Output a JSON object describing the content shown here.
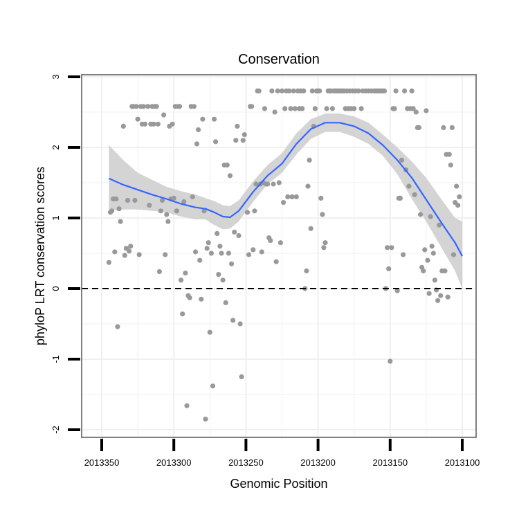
{
  "chart_data": {
    "type": "scatter",
    "title": "Conservation",
    "xlabel": "Genomic Position",
    "ylabel": "phyloP LRT conservation scores",
    "x_reversed": true,
    "xlim": [
      2013100,
      2013350
    ],
    "ylim": [
      -2,
      3
    ],
    "xticks": [
      2013350,
      2013300,
      2013250,
      2013200,
      2013150,
      2013100
    ],
    "xtick_labels": [
      "2013350",
      "2013300",
      "2013250",
      "2013200",
      "2013150",
      "2013100"
    ],
    "yticks": [
      -2,
      -1,
      0,
      1,
      2,
      3
    ],
    "ytick_labels": [
      "-2",
      "-1",
      "0",
      "1",
      "2",
      "3"
    ],
    "reference_line": {
      "y": 0,
      "style": "dashed"
    },
    "colors": {
      "points": "#999999",
      "smooth": "#3366ff",
      "ribbon": "#cccccc",
      "background": "#ffffff",
      "grid": "#f0f0f0",
      "border": "#7f7f7f"
    },
    "points": [
      [
        2013345,
        0.37
      ],
      [
        2013344,
        1.08
      ],
      [
        2013343,
        1.1
      ],
      [
        2013342,
        1.27
      ],
      [
        2013341,
        0.52
      ],
      [
        2013340,
        1.27
      ],
      [
        2013339,
        -0.54
      ],
      [
        2013338,
        1.13
      ],
      [
        2013337,
        0.95
      ],
      [
        2013335,
        2.3
      ],
      [
        2013334,
        0.47
      ],
      [
        2013333,
        0.57
      ],
      [
        2013332,
        1.25
      ],
      [
        2013331,
        0.53
      ],
      [
        2013330,
        0.6
      ],
      [
        2013329,
        2.58
      ],
      [
        2013328,
        2.58
      ],
      [
        2013327,
        1.25
      ],
      [
        2013326,
        2.58
      ],
      [
        2013325,
        2.4
      ],
      [
        2013324,
        0.48
      ],
      [
        2013323,
        2.58
      ],
      [
        2013322,
        2.33
      ],
      [
        2013321,
        2.58
      ],
      [
        2013320,
        2.33
      ],
      [
        2013318,
        2.58
      ],
      [
        2013317,
        1.18
      ],
      [
        2013316,
        2.33
      ],
      [
        2013315,
        2.58
      ],
      [
        2013314,
        2.33
      ],
      [
        2013313,
        2.58
      ],
      [
        2013312,
        2.58
      ],
      [
        2013311,
        2.33
      ],
      [
        2013310,
        0.24
      ],
      [
        2013309,
        1.1
      ],
      [
        2013308,
        1.25
      ],
      [
        2013307,
        2.46
      ],
      [
        2013306,
        0.48
      ],
      [
        2013305,
        1.05
      ],
      [
        2013304,
        0.95
      ],
      [
        2013303,
        2.3
      ],
      [
        2013302,
        1.27
      ],
      [
        2013301,
        2.33
      ],
      [
        2013300,
        1.28
      ],
      [
        2013299,
        2.58
      ],
      [
        2013298,
        1.1
      ],
      [
        2013297,
        2.58
      ],
      [
        2013296,
        2.58
      ],
      [
        2013295,
        0.12
      ],
      [
        2013294,
        -0.36
      ],
      [
        2013293,
        1.23
      ],
      [
        2013292,
        0.22
      ],
      [
        2013291,
        -1.66
      ],
      [
        2013290,
        -0.1
      ],
      [
        2013289,
        -0.13
      ],
      [
        2013288,
        2.58
      ],
      [
        2013287,
        1.3
      ],
      [
        2013286,
        2.58
      ],
      [
        2013285,
        0.52
      ],
      [
        2013284,
        2.05
      ],
      [
        2013283,
        2.25
      ],
      [
        2013282,
        0.4
      ],
      [
        2013281,
        -0.15
      ],
      [
        2013280,
        2.4
      ],
      [
        2013279,
        1.1
      ],
      [
        2013278,
        -1.85
      ],
      [
        2013277,
        0.57
      ],
      [
        2013276,
        0.65
      ],
      [
        2013275,
        -0.62
      ],
      [
        2013274,
        0.5
      ],
      [
        2013273,
        -1.38
      ],
      [
        2013272,
        2.4
      ],
      [
        2013271,
        2.08
      ],
      [
        2013270,
        0.78
      ],
      [
        2013269,
        0.2
      ],
      [
        2013268,
        0.6
      ],
      [
        2013267,
        0.5
      ],
      [
        2013266,
        0.12
      ],
      [
        2013265,
        1.75
      ],
      [
        2013264,
        -0.2
      ],
      [
        2013263,
        1.75
      ],
      [
        2013262,
        0.5
      ],
      [
        2013261,
        1.6
      ],
      [
        2013260,
        0.35
      ],
      [
        2013259,
        -0.45
      ],
      [
        2013258,
        0.8
      ],
      [
        2013257,
        2.1
      ],
      [
        2013256,
        2.3
      ],
      [
        2013255,
        0.75
      ],
      [
        2013254,
        -0.5
      ],
      [
        2013253,
        -1.25
      ],
      [
        2013252,
        2.1
      ],
      [
        2013251,
        2.18
      ],
      [
        2013249,
        1.08
      ],
      [
        2013248,
        0.48
      ],
      [
        2013247,
        2.58
      ],
      [
        2013246,
        2.58
      ],
      [
        2013245,
        0.55
      ],
      [
        2013244,
        1.1
      ],
      [
        2013243,
        1.48
      ],
      [
        2013242,
        2.8
      ],
      [
        2013241,
        2.8
      ],
      [
        2013240,
        1.48
      ],
      [
        2013239,
        0.52
      ],
      [
        2013238,
        1.5
      ],
      [
        2013237,
        2.55
      ],
      [
        2013236,
        1.48
      ],
      [
        2013235,
        1.48
      ],
      [
        2013234,
        0.72
      ],
      [
        2013233,
        0.68
      ],
      [
        2013232,
        2.8
      ],
      [
        2013231,
        1.48
      ],
      [
        2013230,
        2.5
      ],
      [
        2013229,
        0.38
      ],
      [
        2013228,
        2.8
      ],
      [
        2013227,
        1.5
      ],
      [
        2013226,
        0.65
      ],
      [
        2013225,
        2.8
      ],
      [
        2013224,
        1.22
      ],
      [
        2013223,
        2.55
      ],
      [
        2013222,
        2.8
      ],
      [
        2013221,
        1.3
      ],
      [
        2013220,
        2.8
      ],
      [
        2013219,
        2.55
      ],
      [
        2013218,
        1.3
      ],
      [
        2013217,
        2.8
      ],
      [
        2013216,
        2.55
      ],
      [
        2013215,
        1.3
      ],
      [
        2013214,
        2.8
      ],
      [
        2013213,
        2.55
      ],
      [
        2013212,
        2.8
      ],
      [
        2013211,
        2.55
      ],
      [
        2013210,
        2.8
      ],
      [
        2013209,
        0.0
      ],
      [
        2013208,
        0.25
      ],
      [
        2013207,
        1.45
      ],
      [
        2013206,
        1.82
      ],
      [
        2013205,
        0.85
      ],
      [
        2013204,
        2.8
      ],
      [
        2013203,
        2.3
      ],
      [
        2013202,
        2.55
      ],
      [
        2013201,
        2.8
      ],
      [
        2013200,
        2.8
      ],
      [
        2013199,
        2.8
      ],
      [
        2013198,
        1.28
      ],
      [
        2013197,
        1.05
      ],
      [
        2013196,
        0.58
      ],
      [
        2013195,
        0.65
      ],
      [
        2013194,
        2.55
      ],
      [
        2013193,
        2.8
      ],
      [
        2013192,
        2.8
      ],
      [
        2013191,
        2.8
      ],
      [
        2013190,
        2.55
      ],
      [
        2013189,
        2.8
      ],
      [
        2013188,
        2.8
      ],
      [
        2013187,
        2.8
      ],
      [
        2013186,
        2.8
      ],
      [
        2013185,
        2.8
      ],
      [
        2013184,
        2.8
      ],
      [
        2013183,
        2.8
      ],
      [
        2013182,
        2.8
      ],
      [
        2013181,
        2.55
      ],
      [
        2013180,
        2.8
      ],
      [
        2013179,
        2.55
      ],
      [
        2013178,
        2.8
      ],
      [
        2013177,
        2.55
      ],
      [
        2013176,
        2.8
      ],
      [
        2013175,
        2.55
      ],
      [
        2013174,
        2.8
      ],
      [
        2013172,
        2.8
      ],
      [
        2013170,
        2.55
      ],
      [
        2013169,
        2.8
      ],
      [
        2013167,
        2.8
      ],
      [
        2013165,
        2.8
      ],
      [
        2013163,
        2.8
      ],
      [
        2013161,
        2.8
      ],
      [
        2013160,
        2.8
      ],
      [
        2013159,
        2.8
      ],
      [
        2013158,
        2.8
      ],
      [
        2013157,
        2.8
      ],
      [
        2013156,
        2.8
      ],
      [
        2013155,
        2.8
      ],
      [
        2013154,
        2.8
      ],
      [
        2013153,
        0.0
      ],
      [
        2013152,
        0.58
      ],
      [
        2013151,
        0.28
      ],
      [
        2013150,
        -1.03
      ],
      [
        2013149,
        0.58
      ],
      [
        2013148,
        2.55
      ],
      [
        2013147,
        2.55
      ],
      [
        2013146,
        2.8
      ],
      [
        2013145,
        -0.03
      ],
      [
        2013144,
        1.28
      ],
      [
        2013143,
        1.28
      ],
      [
        2013142,
        1.82
      ],
      [
        2013141,
        0.48
      ],
      [
        2013140,
        2.8
      ],
      [
        2013139,
        1.68
      ],
      [
        2013138,
        2.55
      ],
      [
        2013137,
        1.45
      ],
      [
        2013136,
        2.55
      ],
      [
        2013135,
        2.8
      ],
      [
        2013134,
        2.55
      ],
      [
        2013133,
        1.33
      ],
      [
        2013132,
        2.5
      ],
      [
        2013131,
        2.28
      ],
      [
        2013130,
        2.28
      ],
      [
        2013129,
        1.05
      ],
      [
        2013128,
        0.3
      ],
      [
        2013127,
        0.25
      ],
      [
        2013126,
        0.55
      ],
      [
        2013125,
        2.52
      ],
      [
        2013124,
        0.4
      ],
      [
        2013123,
        -0.07
      ],
      [
        2013122,
        1.02
      ],
      [
        2013121,
        0.6
      ],
      [
        2013120,
        0.5
      ],
      [
        2013119,
        0.12
      ],
      [
        2013118,
        -0.02
      ],
      [
        2013117,
        -0.17
      ],
      [
        2013116,
        0.9
      ],
      [
        2013115,
        -0.1
      ],
      [
        2013114,
        0.25
      ],
      [
        2013113,
        2.28
      ],
      [
        2013112,
        0.25
      ],
      [
        2013111,
        1.9
      ],
      [
        2013110,
        -0.12
      ],
      [
        2013109,
        1.9
      ],
      [
        2013108,
        1.75
      ],
      [
        2013107,
        2.28
      ],
      [
        2013106,
        0.48
      ],
      [
        2013105,
        1.22
      ],
      [
        2013104,
        1.45
      ],
      [
        2013103,
        1.18
      ],
      [
        2013102,
        1.3
      ]
    ],
    "smooth": {
      "x": [
        2013345,
        2013335,
        2013325,
        2013315,
        2013305,
        2013295,
        2013285,
        2013278,
        2013272,
        2013266,
        2013261,
        2013255,
        2013245,
        2013235,
        2013225,
        2013215,
        2013205,
        2013195,
        2013185,
        2013175,
        2013165,
        2013155,
        2013145,
        2013135,
        2013125,
        2013115,
        2013105,
        2013100
      ],
      "y": [
        1.56,
        1.47,
        1.4,
        1.33,
        1.27,
        1.2,
        1.15,
        1.13,
        1.08,
        1.02,
        1.01,
        1.1,
        1.37,
        1.6,
        1.77,
        2.05,
        2.26,
        2.35,
        2.35,
        2.3,
        2.2,
        2.03,
        1.82,
        1.57,
        1.26,
        0.95,
        0.65,
        0.46
      ],
      "lower": [
        1.1,
        1.12,
        1.12,
        1.1,
        1.08,
        1.02,
        0.98,
        0.98,
        0.9,
        0.84,
        0.85,
        0.95,
        1.23,
        1.48,
        1.64,
        1.9,
        2.12,
        2.22,
        2.22,
        2.15,
        2.05,
        1.88,
        1.62,
        1.27,
        0.95,
        0.6,
        0.25,
        0.0
      ],
      "upper": [
        2.03,
        1.82,
        1.64,
        1.54,
        1.44,
        1.38,
        1.33,
        1.28,
        1.24,
        1.18,
        1.17,
        1.25,
        1.52,
        1.75,
        1.92,
        2.2,
        2.4,
        2.48,
        2.48,
        2.44,
        2.35,
        2.18,
        2.0,
        1.8,
        1.57,
        1.28,
        1.0,
        0.95
      ]
    }
  }
}
